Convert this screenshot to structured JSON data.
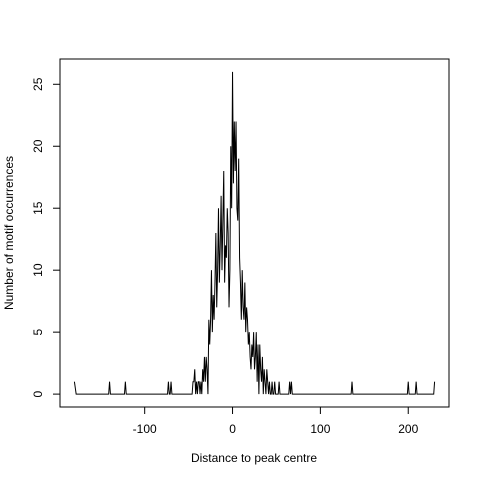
{
  "chart_data": {
    "type": "line",
    "xlabel": "Distance to peak centre",
    "ylabel": "Number of motif occurrences",
    "color": "#000000",
    "x": [
      -180,
      -178,
      -141,
      -140,
      -139,
      -123,
      -122,
      -121,
      -74,
      -73,
      -72,
      -71,
      -70,
      -69,
      -46,
      -45,
      -44,
      -43,
      -42,
      -41,
      -40,
      -39,
      -38,
      -37,
      -36,
      -35,
      -34,
      -33,
      -32,
      -31,
      -30,
      -29,
      -28,
      -27,
      -26,
      -25,
      -24,
      -23,
      -22,
      -21,
      -20,
      -19,
      -18,
      -17,
      -16,
      -15,
      -14,
      -13,
      -12,
      -11,
      -10,
      -9,
      -8,
      -7,
      -6,
      -5,
      -4,
      -3,
      -2,
      -1,
      0,
      1,
      2,
      3,
      4,
      5,
      6,
      7,
      8,
      9,
      10,
      11,
      12,
      13,
      14,
      15,
      16,
      17,
      18,
      19,
      20,
      21,
      22,
      23,
      24,
      25,
      26,
      27,
      28,
      29,
      30,
      31,
      32,
      33,
      34,
      35,
      36,
      37,
      38,
      39,
      40,
      41,
      42,
      43,
      44,
      45,
      46,
      47,
      48,
      49,
      50,
      51,
      52,
      53,
      54,
      55,
      56,
      57,
      64,
      65,
      66,
      67,
      68,
      69,
      135,
      136,
      137,
      199,
      200,
      201,
      208,
      209,
      210,
      229,
      230
    ],
    "values": [
      1,
      0,
      0,
      1,
      0,
      0,
      1,
      0,
      0,
      1,
      0,
      0,
      1,
      0,
      0,
      1,
      1,
      2,
      0,
      1,
      0,
      1,
      1,
      0,
      1,
      0,
      2,
      1,
      3,
      1,
      3,
      2,
      0,
      6,
      4,
      6,
      10,
      5,
      8,
      6,
      9,
      13,
      7,
      10,
      15,
      9,
      12,
      16,
      10,
      14,
      18,
      9,
      12,
      11,
      15,
      13,
      7,
      10,
      20,
      15,
      26,
      17,
      22,
      18,
      22,
      15,
      14,
      19,
      11,
      9,
      6,
      10,
      7,
      6,
      9,
      5,
      7,
      6,
      4,
      5,
      3,
      2,
      4,
      3,
      5,
      2,
      3,
      5,
      1,
      4,
      0,
      4,
      2,
      1,
      3,
      0,
      2,
      1,
      0,
      2,
      1,
      0,
      1,
      0,
      0,
      1,
      0,
      0,
      1,
      0,
      0,
      0,
      0,
      1,
      0,
      0,
      0,
      0,
      0,
      1,
      0,
      1,
      0,
      0,
      0,
      1,
      0,
      0,
      1,
      0,
      0,
      1,
      0,
      0,
      1
    ],
    "xlim": [
      -196.4,
      246.4
    ],
    "xticks": [
      -100,
      0,
      100,
      200
    ],
    "ylim": [
      -1.04,
      27.04
    ],
    "yticks": [
      0,
      5,
      10,
      15,
      20,
      25
    ]
  }
}
